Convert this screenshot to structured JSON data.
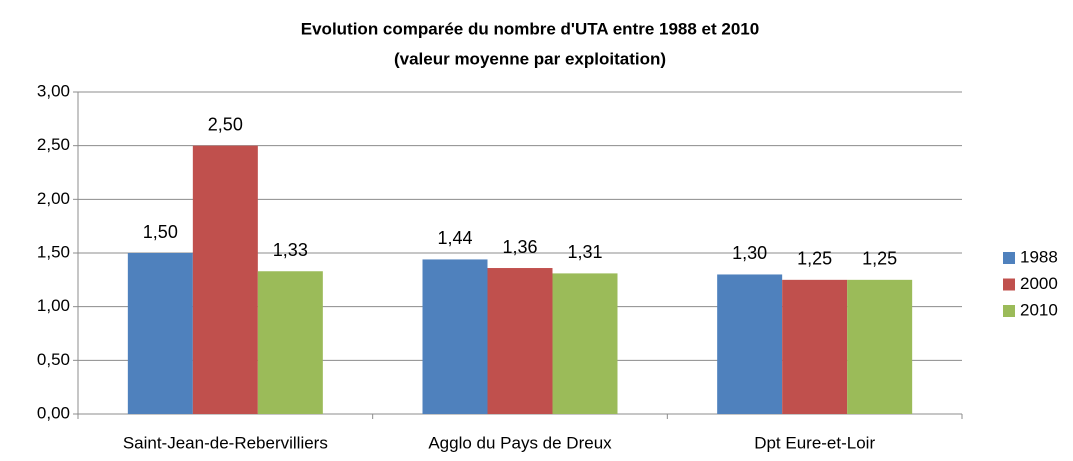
{
  "chart_data": {
    "type": "bar",
    "title": "Evolution comparée du nombre d'UTA entre 1988 et 2010",
    "subtitle": "(valeur moyenne par exploitation)",
    "categories": [
      "Saint-Jean-de-Rebervilliers",
      "Agglo du Pays de Dreux",
      "Dpt Eure-et-Loir"
    ],
    "series": [
      {
        "name": "1988",
        "color": "#4f81bd",
        "values": [
          1.5,
          1.44,
          1.3
        ],
        "value_labels": [
          "1,50",
          "1,44",
          "1,30"
        ]
      },
      {
        "name": "2000",
        "color": "#c0504d",
        "values": [
          2.5,
          1.36,
          1.25
        ],
        "value_labels": [
          "2,50",
          "1,36",
          "1,25"
        ]
      },
      {
        "name": "2010",
        "color": "#9bbb59",
        "values": [
          1.33,
          1.31,
          1.25
        ],
        "value_labels": [
          "1,33",
          "1,31",
          "1,25"
        ]
      }
    ],
    "ylim": [
      0,
      3
    ],
    "yticks": [
      {
        "value": 0,
        "label": "0,00"
      },
      {
        "value": 0.5,
        "label": "0,50"
      },
      {
        "value": 1,
        "label": "1,00"
      },
      {
        "value": 1.5,
        "label": "1,50"
      },
      {
        "value": 2,
        "label": "2,00"
      },
      {
        "value": 2.5,
        "label": "2,50"
      },
      {
        "value": 3,
        "label": "3,00"
      }
    ],
    "grid": true,
    "legend": "right"
  }
}
